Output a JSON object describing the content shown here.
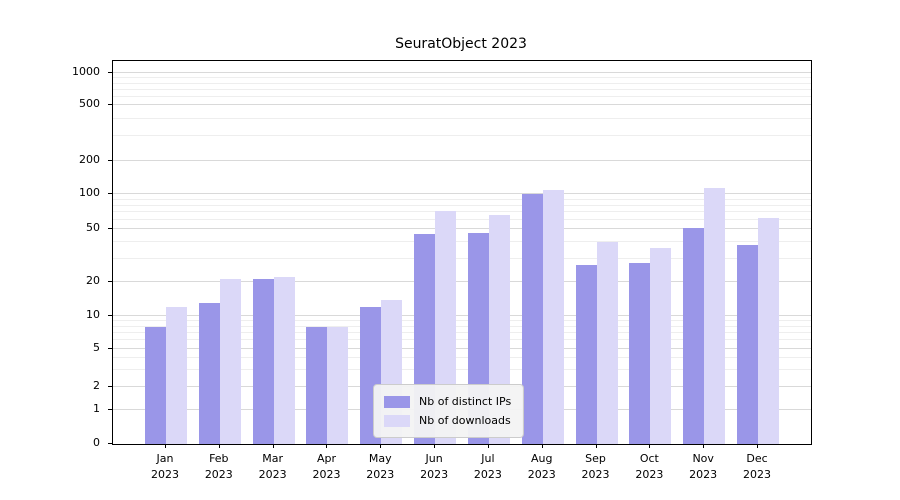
{
  "title": "SeuratObject 2023",
  "chart_data": {
    "type": "bar",
    "title": "SeuratObject 2023",
    "categories": [
      "Jan",
      "Feb",
      "Mar",
      "Apr",
      "May",
      "Jun",
      "Jul",
      "Aug",
      "Sep",
      "Oct",
      "Nov",
      "Dec"
    ],
    "year_label": "2023",
    "series": [
      {
        "name": "Nb of distinct IPs",
        "color": "#9a96e8",
        "values": [
          8,
          13,
          21,
          8,
          12,
          46,
          47,
          100,
          27,
          28,
          51,
          38
        ]
      },
      {
        "name": "Nb of downloads",
        "color": "#dbd8f8",
        "values": [
          12,
          21,
          22,
          8,
          14,
          72,
          66,
          110,
          40,
          36,
          115,
          63
        ]
      }
    ],
    "yscale": "symlog",
    "yticks": [
      0,
      1,
      2,
      5,
      10,
      20,
      50,
      100,
      200,
      500,
      1000
    ],
    "ylim": [
      0,
      1200
    ],
    "grid": "horizontal",
    "legend_position": "lower center"
  }
}
